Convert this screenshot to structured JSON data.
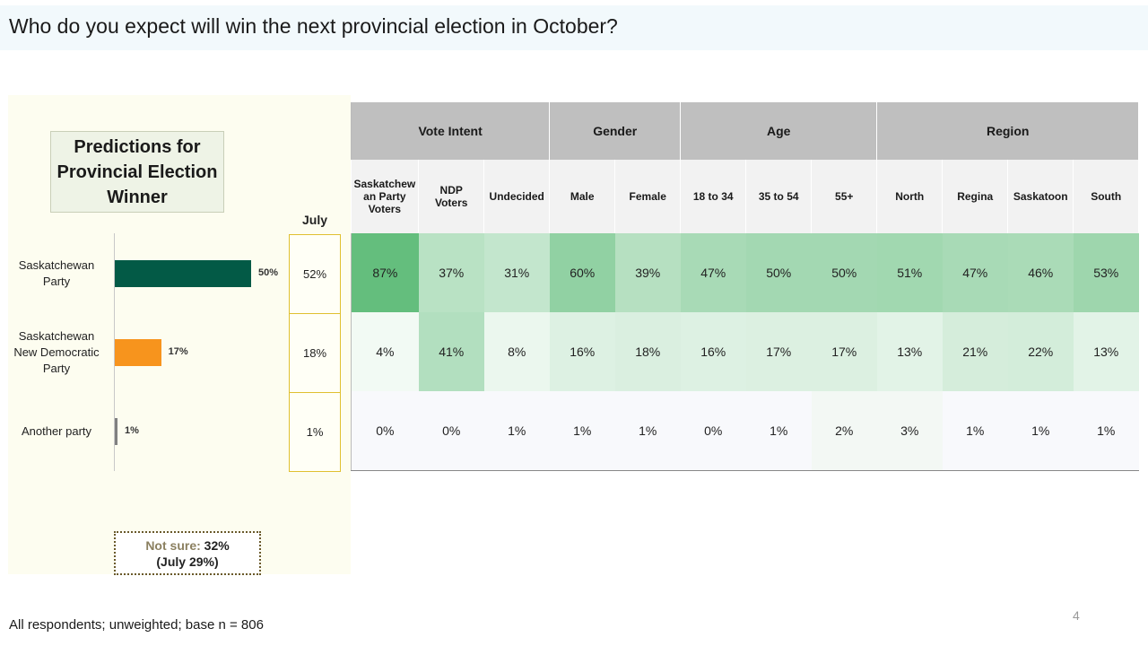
{
  "title": "Who do you expect will win the next provincial election in October?",
  "chart_title_lines": [
    "Predictions for",
    "Provincial Election",
    "Winner"
  ],
  "july_header": "July",
  "footnote": "All respondents; unweighted; base n = 806",
  "page_number": "4",
  "not_sure": {
    "label": "Not sure:",
    "value": "32%",
    "july": "(July 29%)"
  },
  "colors": {
    "sask_party": "#035a46",
    "ndp": "#f7941d",
    "other": "#808080"
  },
  "chart_data": {
    "type": "bar",
    "orientation": "horizontal",
    "title": "Predictions for Provincial Election Winner",
    "categories": [
      "Saskatchewan Party",
      "Saskatchewan New Democratic Party",
      "Another party"
    ],
    "category_lines": [
      [
        "Saskatchewan",
        "Party"
      ],
      [
        "Saskatchewan",
        "New Democratic",
        "Party"
      ],
      [
        "Another party"
      ]
    ],
    "values": [
      50,
      17,
      1
    ],
    "value_labels": [
      "50%",
      "17%",
      "1%"
    ],
    "july_values": [
      "52%",
      "18%",
      "1%"
    ],
    "bar_colors": [
      "#035a46",
      "#f7941d",
      "#808080"
    ],
    "xlim": [
      0,
      100
    ]
  },
  "table": {
    "groups": [
      {
        "label": "Vote Intent",
        "span": 3
      },
      {
        "label": "Gender",
        "span": 2
      },
      {
        "label": "Age",
        "span": 3
      },
      {
        "label": "Region",
        "span": 4
      }
    ],
    "columns": [
      [
        "Saskatchew",
        "an Party",
        "Voters"
      ],
      [
        "NDP",
        "Voters"
      ],
      [
        "Undecided"
      ],
      [
        "Male"
      ],
      [
        "Female"
      ],
      [
        "18 to 34"
      ],
      [
        "35 to 54"
      ],
      [
        "55+"
      ],
      [
        "North"
      ],
      [
        "Regina"
      ],
      [
        "Saskatoon"
      ],
      [
        "South"
      ]
    ],
    "rows": [
      [
        "87%",
        "37%",
        "31%",
        "60%",
        "39%",
        "47%",
        "50%",
        "50%",
        "51%",
        "47%",
        "46%",
        "53%"
      ],
      [
        "4%",
        "41%",
        "8%",
        "16%",
        "18%",
        "16%",
        "17%",
        "17%",
        "13%",
        "21%",
        "22%",
        "13%"
      ],
      [
        "0%",
        "0%",
        "1%",
        "1%",
        "1%",
        "0%",
        "1%",
        "2%",
        "3%",
        "1%",
        "1%",
        "1%"
      ]
    ]
  }
}
